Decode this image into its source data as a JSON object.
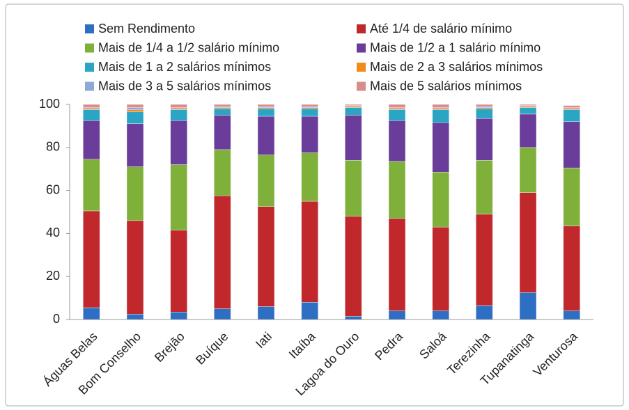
{
  "chart_data": {
    "type": "stacked_bar",
    "categories": [
      "Águas Belas",
      "Bom Conselho",
      "Brejão",
      "Buíque",
      "Iati",
      "Itaíba",
      "Lagoa do Ouro",
      "Pedra",
      "Saloá",
      "Terezinha",
      "Tupanatinga",
      "Venturosa"
    ],
    "series": [
      {
        "name": "Sem Rendimento",
        "color": "#2e6fc4",
        "values": [
          5.5,
          2.5,
          3.5,
          5,
          6,
          8,
          1.5,
          4,
          4,
          6.5,
          12.5,
          4
        ]
      },
      {
        "name": "Até 1/4 de salário mínimo",
        "color": "#c0282c",
        "values": [
          45,
          43.5,
          38,
          52.5,
          46.5,
          47,
          46.5,
          43,
          39,
          42.5,
          46.5,
          39.5
        ]
      },
      {
        "name": "Mais de 1/4 a 1/2 salário mínimo",
        "color": "#7fb03a",
        "values": [
          24,
          25,
          30.5,
          21.5,
          24,
          22.5,
          26,
          26.5,
          25.5,
          25,
          21,
          27
        ]
      },
      {
        "name": "Mais de 1/2 a 1 salário mínimo",
        "color": "#6a3d9a",
        "values": [
          18,
          20,
          20.5,
          16,
          18,
          17,
          21,
          19,
          23,
          19.5,
          15.5,
          21.5
        ]
      },
      {
        "name": "Mais de 1 a 2 salários mínimos",
        "color": "#2aa6c4",
        "values": [
          5,
          5.5,
          5,
          3,
          3.5,
          3.5,
          3.5,
          5,
          6,
          4.5,
          3,
          5.5
        ]
      },
      {
        "name": "Mais de 2 a 3 salários mínimos",
        "color": "#f28a1c",
        "values": [
          0.5,
          1,
          0.5,
          0.5,
          0.5,
          0.5,
          0.5,
          0.5,
          0.5,
          0.5,
          0.5,
          0.5
        ]
      },
      {
        "name": "Mais de 3 a 5 salários mínimos",
        "color": "#8fa8d8",
        "values": [
          0.5,
          1,
          0.5,
          0.5,
          0.5,
          0.5,
          0.5,
          0.5,
          0.5,
          0.5,
          0.5,
          0.5
        ]
      },
      {
        "name": "Mais de 5 salários mínimos",
        "color": "#d98c8c",
        "values": [
          1.5,
          1.5,
          1.5,
          1,
          1,
          1,
          0.5,
          1.5,
          1.5,
          1,
          0.5,
          1
        ]
      }
    ],
    "ylim": [
      0,
      100
    ],
    "yticks": [
      0,
      20,
      40,
      60,
      80,
      100
    ],
    "grid": false
  }
}
